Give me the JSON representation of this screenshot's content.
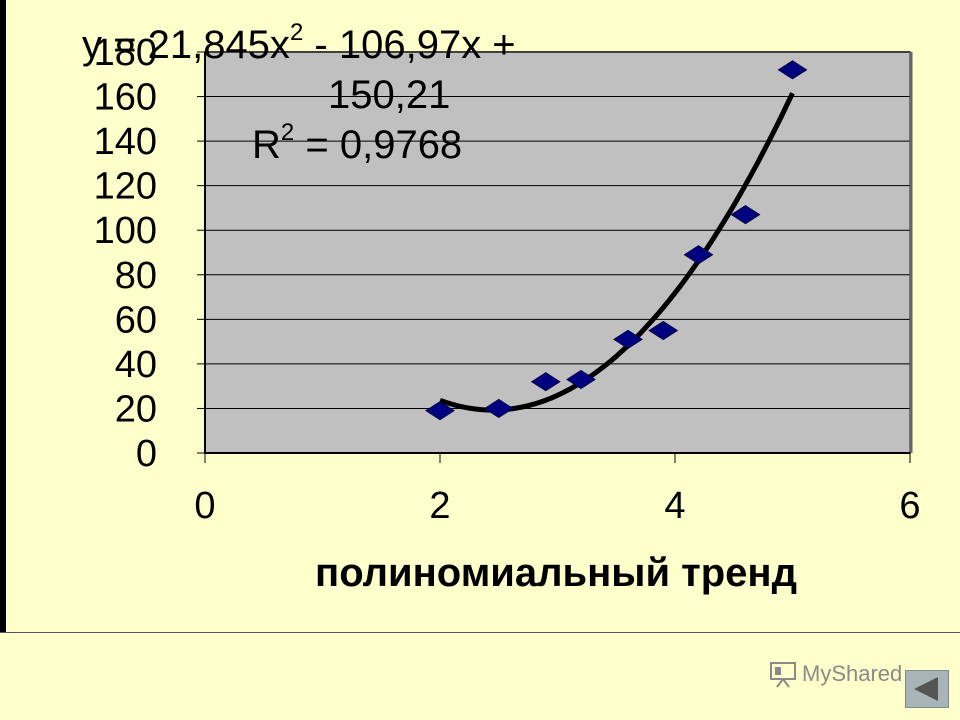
{
  "chart_data": {
    "type": "scatter",
    "title": "",
    "xlabel": "полиномиальный тренд",
    "ylabel": "",
    "xlim": [
      0,
      6
    ],
    "ylim": [
      0,
      180
    ],
    "x_ticks": [
      "0",
      "2",
      "4",
      "6"
    ],
    "y_ticks": [
      "0",
      "20",
      "40",
      "60",
      "80",
      "100",
      "120",
      "140",
      "160",
      "180"
    ],
    "grid": true,
    "legend": "none",
    "series": [
      {
        "values_x": [
          2.0,
          2.5,
          2.9,
          3.2,
          3.6,
          3.9,
          4.2,
          4.6,
          5.0
        ],
        "values_y": [
          19,
          20,
          32,
          33,
          51,
          55,
          89,
          107,
          172
        ]
      }
    ],
    "trendline": {
      "type": "polynomial",
      "coefficients": [
        21.845,
        -106.97,
        150.21
      ],
      "x_range": [
        2.0,
        5.0
      ]
    },
    "annotations": {
      "equation_line1": "y = 21,845x",
      "equation_exp1": "2",
      "equation_line1_rest": " - 106,97x +",
      "equation_line2": "150,21",
      "r2_prefix": "R",
      "r2_exp": "2",
      "r2_rest": " = 0,9768"
    },
    "colors": {
      "plot_bg": "#c0c0c0",
      "marker": "#000080",
      "trend": "#000000",
      "page_bg": "#ffffcc"
    }
  },
  "watermark": {
    "text": "MyShared",
    "icon": "presentation-icon"
  },
  "controls": {
    "back_icon": "triangle-left-icon"
  }
}
